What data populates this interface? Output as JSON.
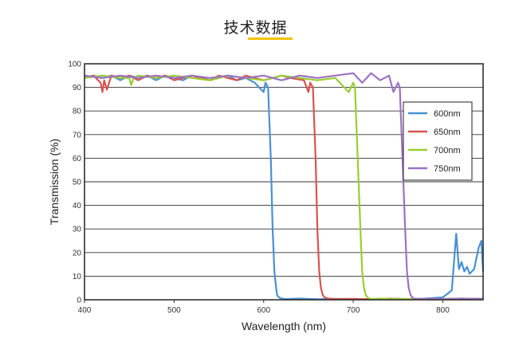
{
  "page": {
    "title": "技术数据",
    "accent_color": "#f2c300"
  },
  "chart_data": {
    "type": "line",
    "title": "",
    "xlabel": "Wavelength (nm)",
    "ylabel": "Transmission (%)",
    "xlim": [
      400,
      845
    ],
    "ylim": [
      0,
      100
    ],
    "xticks": [
      400,
      500,
      600,
      700,
      800
    ],
    "yticks": [
      0,
      10,
      20,
      30,
      40,
      50,
      60,
      70,
      80,
      90,
      100
    ],
    "grid": "horizontal",
    "legend_position": "right",
    "series": [
      {
        "name": "600nm",
        "color": "#4a90d2",
        "x": [
          400,
          410,
          420,
          430,
          440,
          450,
          460,
          470,
          480,
          490,
          500,
          510,
          520,
          530,
          540,
          550,
          560,
          570,
          580,
          590,
          600,
          602,
          605,
          608,
          610,
          612,
          614,
          615,
          617,
          620,
          625,
          640,
          660,
          680,
          700,
          720,
          740,
          760,
          780,
          800,
          810,
          815,
          818,
          821,
          824,
          827,
          830,
          835,
          840,
          843,
          845
        ],
        "y": [
          94,
          95,
          94,
          95,
          93,
          95,
          94,
          95,
          93,
          95,
          94,
          93,
          95,
          94,
          93,
          94,
          95,
          93,
          94,
          92,
          88,
          92,
          90,
          60,
          30,
          12,
          5,
          2,
          1,
          0.5,
          0.3,
          0.5,
          0.2,
          0.4,
          0.3,
          0.2,
          0.4,
          0.3,
          0.5,
          1,
          4,
          28,
          13,
          16,
          12,
          14,
          11,
          13,
          22,
          25,
          12
        ]
      },
      {
        "name": "650nm",
        "color": "#d9534f",
        "x": [
          400,
          410,
          418,
          420,
          422,
          425,
          430,
          440,
          450,
          460,
          470,
          480,
          490,
          500,
          510,
          520,
          530,
          540,
          550,
          560,
          570,
          580,
          590,
          600,
          610,
          620,
          630,
          645,
          650,
          652,
          655,
          658,
          660,
          662,
          664,
          666,
          668,
          672,
          680,
          700,
          720,
          740,
          760,
          780,
          800,
          820,
          845
        ],
        "y": [
          94,
          95,
          92,
          88,
          93,
          89,
          95,
          94,
          95,
          93,
          95,
          94,
          95,
          93,
          94,
          95,
          94,
          93,
          95,
          94,
          93,
          95,
          94,
          93,
          94,
          95,
          94,
          93,
          88,
          92,
          90,
          60,
          30,
          12,
          5,
          2,
          1,
          0.5,
          0.3,
          0.4,
          0.2,
          0.5,
          0.3,
          0.4,
          0.3,
          0.5,
          0.4
        ]
      },
      {
        "name": "700nm",
        "color": "#9acd32",
        "x": [
          400,
          420,
          440,
          450,
          452,
          455,
          460,
          480,
          500,
          520,
          540,
          560,
          580,
          600,
          620,
          640,
          660,
          680,
          695,
          700,
          702,
          705,
          708,
          710,
          712,
          714,
          716,
          718,
          722,
          730,
          750,
          770,
          790,
          810,
          830,
          845
        ],
        "y": [
          94,
          95,
          94,
          94,
          91,
          94,
          95,
          94,
          95,
          94,
          93,
          95,
          94,
          93,
          95,
          94,
          93,
          94,
          88,
          92,
          90,
          60,
          30,
          12,
          5,
          2,
          1,
          0.5,
          0.3,
          0.5,
          0.3,
          0.4,
          0.2,
          0.5,
          0.3,
          0.4
        ]
      },
      {
        "name": "750nm",
        "color": "#9b72c2",
        "x": [
          400,
          420,
          440,
          460,
          480,
          500,
          520,
          540,
          560,
          580,
          600,
          620,
          640,
          660,
          680,
          700,
          710,
          720,
          730,
          740,
          745,
          750,
          752,
          755,
          758,
          760,
          762,
          764,
          766,
          768,
          772,
          780,
          800,
          820,
          845
        ],
        "y": [
          95,
          94,
          95,
          94,
          95,
          94,
          95,
          94,
          95,
          94,
          95,
          93,
          95,
          94,
          95,
          96,
          92,
          96,
          93,
          95,
          88,
          92,
          90,
          60,
          30,
          12,
          5,
          2,
          1,
          0.5,
          0.3,
          0.4,
          0.3,
          0.5,
          0.4
        ]
      }
    ]
  }
}
